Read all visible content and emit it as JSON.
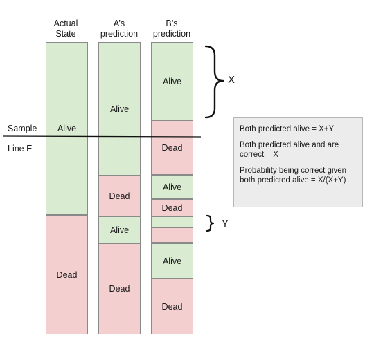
{
  "headers": {
    "actual": [
      "Actual",
      "State"
    ],
    "a": [
      "A’s",
      "prediction"
    ],
    "b": [
      "B’s",
      "prediction"
    ]
  },
  "side_labels": {
    "sample": "Sample",
    "line_e": "Line E"
  },
  "columns": {
    "actual": [
      {
        "state": "alive",
        "label": "Alive"
      },
      {
        "state": "dead",
        "label": "Dead"
      }
    ],
    "a": [
      {
        "state": "alive",
        "label": "Alive"
      },
      {
        "state": "dead",
        "label": "Dead"
      },
      {
        "state": "alive",
        "label": "Alive"
      },
      {
        "state": "dead",
        "label": "Dead"
      }
    ],
    "b": [
      {
        "state": "alive",
        "label": "Alive"
      },
      {
        "state": "dead",
        "label": "Dead"
      },
      {
        "state": "alive",
        "label": "Alive"
      },
      {
        "state": "dead",
        "label": "Dead"
      },
      {
        "state": "alive",
        "label": ""
      },
      {
        "state": "dead",
        "label": ""
      },
      {
        "state": "alive",
        "label": "Alive"
      },
      {
        "state": "dead",
        "label": "Dead"
      }
    ]
  },
  "brackets": {
    "x": "X",
    "y": "Y"
  },
  "notes": [
    "Both predicted alive = X+Y",
    "Both predicted alive and are correct = X",
    "Probability being correct given both predicted alive = X/(X+Y)"
  ],
  "colors": {
    "alive": "#d9ecd1",
    "dead": "#f4cfcf",
    "border": "#8a8a8a"
  }
}
